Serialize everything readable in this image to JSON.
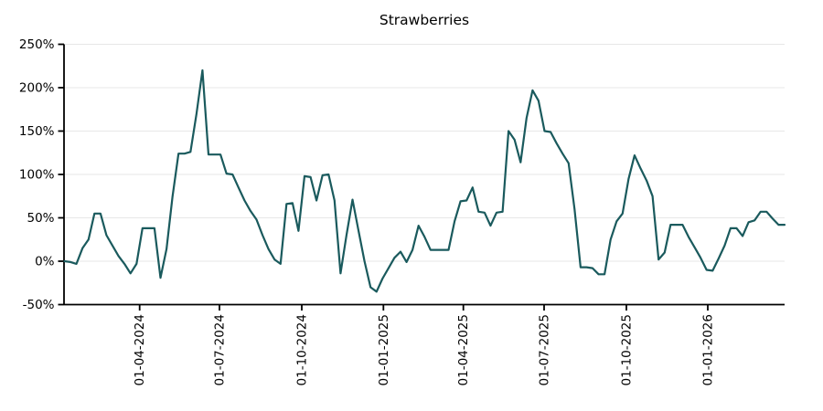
{
  "title": "Strawberries",
  "chart_data": {
    "type": "line",
    "title": "Strawberries",
    "unit": "percent",
    "frequency": "weekly",
    "start_date": "2024-01-01",
    "series_color": "#1a5a5d",
    "grid": "horizontal-only",
    "legend": "none",
    "ylim": [
      -50,
      250
    ],
    "y_axis": {
      "tick_values": [
        250,
        200,
        150,
        100,
        50,
        0,
        -50
      ],
      "tick_labels": [
        "250%",
        "200%",
        "150%",
        "100%",
        "50%",
        "0%",
        "-50%"
      ]
    },
    "x_axis": {
      "tick_labels": [
        "01-04-2024",
        "01-07-2024",
        "01-10-2024",
        "01-01-2025",
        "01-04-2025",
        "01-07-2025",
        "01-10-2025",
        "01-01-2026"
      ]
    },
    "values": [
      0,
      -1,
      -3,
      15,
      25,
      55,
      55,
      30,
      18,
      6,
      -3,
      -14,
      -3,
      38,
      38,
      38,
      -19,
      14,
      74,
      124,
      124,
      126,
      170,
      220,
      123,
      123,
      123,
      101,
      100,
      85,
      70,
      58,
      48,
      30,
      14,
      2,
      -3,
      66,
      67,
      35,
      98,
      97,
      70,
      99,
      100,
      70,
      -14,
      30,
      71,
      35,
      0,
      -30,
      -35,
      -20,
      -8,
      4,
      11,
      -1,
      13,
      41,
      28,
      13,
      13,
      13,
      13,
      46,
      69,
      70,
      85,
      57,
      56,
      41,
      56,
      57,
      150,
      140,
      114,
      165,
      197,
      185,
      150,
      149,
      136,
      124,
      113,
      60,
      -7,
      -7,
      -8,
      -15,
      -15,
      25,
      46,
      55,
      95,
      122,
      107,
      93,
      75,
      2,
      10,
      42,
      42,
      42,
      28,
      16,
      4,
      -10,
      -11,
      3,
      18,
      38,
      38,
      29,
      45,
      47,
      57,
      57,
      49,
      42,
      42
    ]
  }
}
